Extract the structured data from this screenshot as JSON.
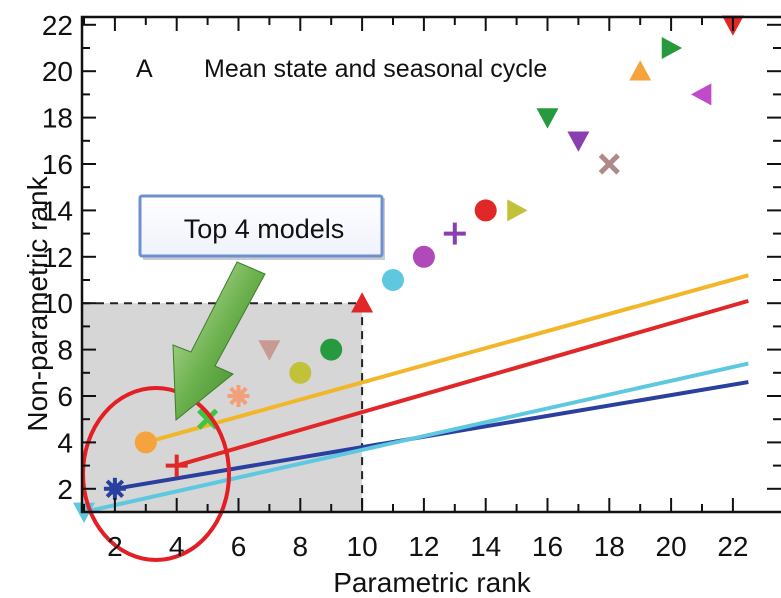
{
  "chart_data": {
    "type": "scatter",
    "panel_label": "A",
    "title": "Mean state and seasonal cycle",
    "xlabel": "Parametric rank",
    "ylabel": "Non-parametric rank",
    "xlim": [
      1,
      22
    ],
    "ylim": [
      1,
      22
    ],
    "x_ticks": [
      2,
      4,
      6,
      8,
      10,
      12,
      14,
      16,
      18,
      20,
      22
    ],
    "y_ticks": [
      2,
      4,
      6,
      8,
      10,
      12,
      14,
      16,
      18,
      20,
      22
    ],
    "grid": false,
    "annotation": {
      "label": "Top 4 models",
      "highlight_region": {
        "x": [
          1,
          10
        ],
        "y": [
          1,
          10
        ]
      }
    },
    "points": [
      {
        "x": 1,
        "y": 1,
        "marker": "triangle-down",
        "color": "#5ec8e0"
      },
      {
        "x": 2,
        "y": 2,
        "marker": "asterisk",
        "color": "#2b3f9e"
      },
      {
        "x": 3,
        "y": 4,
        "marker": "circle",
        "color": "#f5a33c"
      },
      {
        "x": 4,
        "y": 3,
        "marker": "plus",
        "color": "#e02828"
      },
      {
        "x": 5,
        "y": 5,
        "marker": "x",
        "color": "#3fc43f"
      },
      {
        "x": 6,
        "y": 6,
        "marker": "asterisk",
        "color": "#f2a07a"
      },
      {
        "x": 7,
        "y": 8,
        "marker": "triangle-down",
        "color": "#c89a94"
      },
      {
        "x": 8,
        "y": 7,
        "marker": "circle",
        "color": "#c2c23a"
      },
      {
        "x": 9,
        "y": 8,
        "marker": "circle",
        "color": "#279a3f"
      },
      {
        "x": 10,
        "y": 10,
        "marker": "triangle-up",
        "color": "#e02828"
      },
      {
        "x": 11,
        "y": 11,
        "marker": "circle",
        "color": "#5ec8e0"
      },
      {
        "x": 12,
        "y": 12,
        "marker": "circle",
        "color": "#b04ab8"
      },
      {
        "x": 13,
        "y": 13,
        "marker": "plus",
        "color": "#8a3fb0"
      },
      {
        "x": 14,
        "y": 14,
        "marker": "circle",
        "color": "#e02828"
      },
      {
        "x": 15,
        "y": 14,
        "marker": "triangle-right",
        "color": "#c2c23a"
      },
      {
        "x": 16,
        "y": 18,
        "marker": "triangle-down",
        "color": "#279a3f"
      },
      {
        "x": 17,
        "y": 17,
        "marker": "triangle-down",
        "color": "#8a3fb0"
      },
      {
        "x": 18,
        "y": 16,
        "marker": "x",
        "color": "#b08a8a"
      },
      {
        "x": 19,
        "y": 20,
        "marker": "triangle-up",
        "color": "#f5a33c"
      },
      {
        "x": 20,
        "y": 21,
        "marker": "triangle-right",
        "color": "#279a3f"
      },
      {
        "x": 21,
        "y": 19,
        "marker": "triangle-left",
        "color": "#c04ac8"
      },
      {
        "x": 22,
        "y": 22,
        "marker": "triangle-down",
        "color": "#e02828"
      }
    ],
    "lines": [
      {
        "color": "#f2b62a",
        "from": [
          3,
          4
        ],
        "to": [
          22.5,
          11.2
        ]
      },
      {
        "color": "#e02828",
        "from": [
          4,
          3
        ],
        "to": [
          22.5,
          10.1
        ]
      },
      {
        "color": "#2b3f9e",
        "from": [
          2,
          2
        ],
        "to": [
          22.5,
          6.6
        ]
      },
      {
        "color": "#5ec8e0",
        "from": [
          1,
          1
        ],
        "to": [
          22.5,
          7.4
        ]
      }
    ]
  }
}
